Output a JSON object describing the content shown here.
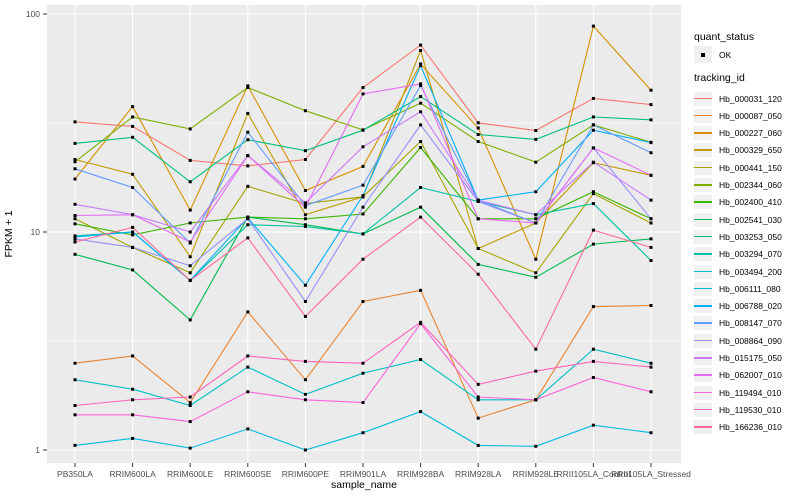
{
  "figure": {
    "x_axis": {
      "title": "sample_name"
    },
    "y_axis": {
      "title": "FPKM + 1",
      "ticks": [
        {
          "label": "1",
          "value": 1
        },
        {
          "label": "10",
          "value": 10
        },
        {
          "label": "100",
          "value": 100
        }
      ]
    },
    "legend": {
      "quant_title": "quant_status",
      "quant_items": [
        {
          "label": "OK"
        }
      ],
      "tracking_title": "tracking_id"
    }
  },
  "colors": {
    "panel_bg": "#EBEBEB",
    "grid": "#FFFFFF",
    "page_bg": "#FFFFFF",
    "tick_text": "#4D4D4D",
    "tick_mark": "#333333",
    "point": "#000000",
    "legend_key_bg": "#F0F0F0"
  },
  "chart_data": {
    "type": "line",
    "title": "",
    "xlabel": "sample_name",
    "ylabel": "FPKM + 1",
    "y_scale": "log10",
    "ylim": [
      1,
      110
    ],
    "grid": true,
    "legend_position": "right",
    "quant_status": "OK",
    "categories": [
      "PB350LA",
      "RRIM600LA",
      "RRIM600LE",
      "RRIM600SE",
      "RRIM600PE",
      "RRIM901LA",
      "RRIM928BA",
      "RRIM928LA",
      "RRIM928LE",
      "RRII105LA_Control",
      "RRII105LA_Stressed"
    ],
    "minor_grid_values": [
      3.1623,
      31.623
    ],
    "series": [
      {
        "name": "Hb_000031_120",
        "color": "#F8766D",
        "values": [
          32,
          30.5,
          21.3,
          20.1,
          21.5,
          46,
          72,
          31.7,
          29.2,
          41,
          38.4
        ]
      },
      {
        "name": "Hb_000087_050",
        "color": "#EA8331",
        "values": [
          2.5,
          2.7,
          1.65,
          4.3,
          2.1,
          4.8,
          5.4,
          1.4,
          1.7,
          4.55,
          4.6
        ]
      },
      {
        "name": "Hb_000227_060",
        "color": "#D89000",
        "values": [
          17.5,
          37.6,
          12.6,
          46.8,
          15.5,
          20,
          59,
          30,
          7.5,
          88,
          44.7
        ]
      },
      {
        "name": "Hb_000329_650",
        "color": "#C09B00",
        "values": [
          21.5,
          18.4,
          7.7,
          35,
          12,
          14.5,
          68,
          8.4,
          11,
          20.8,
          18.2
        ]
      },
      {
        "name": "Hb_000441_150",
        "color": "#A3A500",
        "values": [
          11.5,
          8.5,
          6.5,
          16.2,
          13.5,
          14.5,
          26,
          8.4,
          6.5,
          15,
          11
        ]
      },
      {
        "name": "Hb_002344_060",
        "color": "#7CAE00",
        "values": [
          21,
          33.7,
          29.7,
          46,
          36,
          29.4,
          39,
          26,
          20.9,
          31,
          25.8
        ]
      },
      {
        "name": "Hb_002400_410",
        "color": "#39B600",
        "values": [
          10.9,
          9.7,
          11,
          11.7,
          11.5,
          12.1,
          24.4,
          11.5,
          11.5,
          15.3,
          11.5
        ]
      },
      {
        "name": "Hb_002541_030",
        "color": "#00BB4E",
        "values": [
          7.9,
          6.7,
          3.95,
          11.7,
          10.8,
          9.8,
          13,
          7.1,
          6.2,
          8.8,
          9.3
        ]
      },
      {
        "name": "Hb_003253_050",
        "color": "#00BF7D",
        "values": [
          25.5,
          27.2,
          17,
          26.5,
          23.6,
          29.3,
          41.8,
          28,
          26.6,
          33.7,
          32.7
        ]
      },
      {
        "name": "Hb_003294_070",
        "color": "#00C1A3",
        "values": [
          9.6,
          10,
          6,
          10.8,
          10.6,
          9.8,
          16,
          13.8,
          12,
          13.5,
          7.4
        ]
      },
      {
        "name": "Hb_003494_200",
        "color": "#00BFC4",
        "values": [
          2.1,
          1.9,
          1.6,
          2.4,
          1.8,
          2.25,
          2.6,
          1.7,
          1.7,
          2.9,
          2.5
        ]
      },
      {
        "name": "Hb_006111_080",
        "color": "#00BADE",
        "values": [
          1.05,
          1.13,
          1.02,
          1.25,
          1.0,
          1.2,
          1.5,
          1.05,
          1.04,
          1.3,
          1.2
        ]
      },
      {
        "name": "Hb_006788_020",
        "color": "#00B0F6",
        "values": [
          9.5,
          10,
          6,
          11.6,
          5.7,
          14.7,
          58,
          14,
          15.3,
          29.3,
          25.7
        ]
      },
      {
        "name": "Hb_008147_070",
        "color": "#619CFF",
        "values": [
          19.5,
          16,
          8.9,
          28.7,
          13.2,
          16.4,
          47,
          14,
          11,
          31,
          23.1
        ]
      },
      {
        "name": "Hb_008864_090",
        "color": "#9590FF",
        "values": [
          9.3,
          8.5,
          7,
          11.5,
          4.8,
          13,
          31,
          13.8,
          11,
          24.3,
          11.5
        ]
      },
      {
        "name": "Hb_015175_050",
        "color": "#C77CFF",
        "values": [
          13.4,
          12,
          10,
          22.4,
          13.6,
          24.6,
          35.6,
          14,
          12,
          20.9,
          14
        ]
      },
      {
        "name": "Hb_062007_010",
        "color": "#E76BF3",
        "values": [
          11.9,
          12,
          9,
          22.4,
          13,
          43,
          47.8,
          11.5,
          11,
          24.3,
          18.2
        ]
      },
      {
        "name": "Hb_119494_010",
        "color": "#FA62DB",
        "values": [
          1.45,
          1.45,
          1.35,
          1.85,
          1.7,
          1.65,
          3.8,
          1.75,
          1.7,
          2.15,
          1.85
        ]
      },
      {
        "name": "Hb_119530_010",
        "color": "#FF62BC",
        "values": [
          1.6,
          1.7,
          1.75,
          2.7,
          2.55,
          2.5,
          3.85,
          2.0,
          2.3,
          2.55,
          2.4
        ]
      },
      {
        "name": "Hb_166236_010",
        "color": "#FF6A98",
        "values": [
          9,
          10.5,
          6,
          9.4,
          4.1,
          7.5,
          11.7,
          6.4,
          2.9,
          10.2,
          8.5
        ]
      }
    ]
  }
}
